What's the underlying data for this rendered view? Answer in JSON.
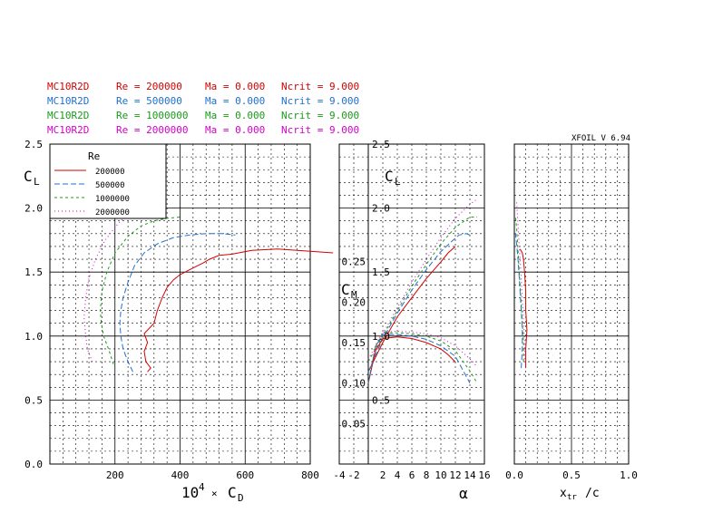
{
  "header": {
    "rows": [
      {
        "airfoil": "MC10R2D",
        "re": "Re = 200000",
        "ma": "Ma = 0.000",
        "ncrit": "Ncrit = 9.000",
        "color": "#d40000"
      },
      {
        "airfoil": "MC10R2D",
        "re": "Re = 500000",
        "ma": "Ma = 0.000",
        "ncrit": "Ncrit = 9.000",
        "color": "#1f6fd0"
      },
      {
        "airfoil": "MC10R2D",
        "re": "Re = 1000000",
        "ma": "Ma = 0.000",
        "ncrit": "Ncrit = 9.000",
        "color": "#1a9a1a"
      },
      {
        "airfoil": "MC10R2D",
        "re": "Re = 2000000",
        "ma": "Ma = 0.000",
        "ncrit": "Ncrit = 9.000",
        "color": "#d400c8"
      }
    ],
    "version": "XFOIL V 6.94"
  },
  "chart_data": [
    {
      "type": "line",
      "panel": "drag-polar",
      "xlabel": "10⁴ × C_D",
      "ylabel": "C_L",
      "xlim": [
        0,
        800
      ],
      "ylim": [
        0,
        2.5
      ],
      "x_ticks": [
        "200",
        "400",
        "600",
        "800"
      ],
      "y_ticks": [
        "0.0",
        "0.5",
        "1.0",
        "1.5",
        "2.0",
        "2.5"
      ],
      "legend": {
        "title": "Re",
        "position": "top-left",
        "entries": [
          "200000",
          "500000",
          "1000000",
          "2000000"
        ]
      },
      "series": [
        {
          "name": "200000",
          "color": "#d40000",
          "dash": "",
          "points": [
            [
              300,
              0.72
            ],
            [
              310,
              0.75
            ],
            [
              295,
              0.8
            ],
            [
              290,
              0.88
            ],
            [
              300,
              0.95
            ],
            [
              290,
              1.02
            ],
            [
              320,
              1.1
            ],
            [
              330,
              1.2
            ],
            [
              345,
              1.3
            ],
            [
              360,
              1.38
            ],
            [
              380,
              1.44
            ],
            [
              400,
              1.48
            ],
            [
              430,
              1.52
            ],
            [
              470,
              1.57
            ],
            [
              490,
              1.6
            ],
            [
              520,
              1.63
            ],
            [
              560,
              1.64
            ],
            [
              620,
              1.67
            ],
            [
              700,
              1.68
            ],
            [
              760,
              1.67
            ],
            [
              870,
              1.65
            ]
          ]
        },
        {
          "name": "500000",
          "color": "#1f6fd0",
          "dash": "6 3",
          "points": [
            [
              255,
              0.72
            ],
            [
              240,
              0.8
            ],
            [
              225,
              0.9
            ],
            [
              218,
              1.0
            ],
            [
              215,
              1.1
            ],
            [
              218,
              1.2
            ],
            [
              225,
              1.3
            ],
            [
              240,
              1.42
            ],
            [
              260,
              1.55
            ],
            [
              290,
              1.65
            ],
            [
              330,
              1.72
            ],
            [
              380,
              1.77
            ],
            [
              430,
              1.79
            ],
            [
              480,
              1.8
            ],
            [
              530,
              1.8
            ],
            [
              570,
              1.79
            ]
          ]
        },
        {
          "name": "1000000",
          "color": "#1a9a1a",
          "dash": "3 3",
          "points": [
            [
              195,
              0.78
            ],
            [
              180,
              0.9
            ],
            [
              165,
              1.0
            ],
            [
              158,
              1.1
            ],
            [
              155,
              1.2
            ],
            [
              160,
              1.35
            ],
            [
              175,
              1.5
            ],
            [
              200,
              1.65
            ],
            [
              240,
              1.78
            ],
            [
              280,
              1.86
            ],
            [
              320,
              1.9
            ],
            [
              360,
              1.92
            ],
            [
              400,
              1.93
            ]
          ]
        },
        {
          "name": "2000000",
          "color": "#d400c8",
          "dash": "1 3",
          "points": [
            [
              130,
              0.8
            ],
            [
              115,
              0.9
            ],
            [
              110,
              1.0
            ],
            [
              105,
              1.15
            ],
            [
              110,
              1.3
            ],
            [
              120,
              1.45
            ],
            [
              140,
              1.6
            ],
            [
              170,
              1.75
            ],
            [
              210,
              1.88
            ],
            [
              250,
              1.97
            ],
            [
              290,
              2.03
            ],
            [
              330,
              2.06
            ],
            [
              360,
              2.07
            ]
          ]
        }
      ]
    },
    {
      "type": "line",
      "panel": "lift-moment",
      "xlabel": "α",
      "ylabel_cl": "C_L",
      "ylabel_cm": "C_M",
      "xlim": [
        -4,
        16
      ],
      "ylim_cl": [
        0,
        2.5
      ],
      "ylim_cm": [
        0,
        0.3
      ],
      "x_ticks": [
        "-4",
        "-2",
        "2",
        "4",
        "6",
        "8",
        "10",
        "12",
        "14",
        "16"
      ],
      "cl_ticks": [
        "0.5",
        "1.0",
        "1.5",
        "2.0",
        "2.5"
      ],
      "cm_ticks": [
        "0.05",
        "0.10",
        "0.15",
        "0.20",
        "0.25"
      ],
      "series_cl": [
        {
          "name": "200000",
          "color": "#d40000",
          "dash": "",
          "points": [
            [
              0,
              0.72
            ],
            [
              2,
              0.95
            ],
            [
              4,
              1.15
            ],
            [
              6,
              1.3
            ],
            [
              8,
              1.45
            ],
            [
              10,
              1.58
            ],
            [
              11,
              1.65
            ],
            [
              12,
              1.7
            ]
          ]
        },
        {
          "name": "500000",
          "color": "#1f6fd0",
          "dash": "6 3",
          "points": [
            [
              0,
              0.72
            ],
            [
              2,
              0.98
            ],
            [
              4,
              1.18
            ],
            [
              6,
              1.36
            ],
            [
              8,
              1.52
            ],
            [
              10,
              1.66
            ],
            [
              11.5,
              1.74
            ],
            [
              12.5,
              1.79
            ],
            [
              13.5,
              1.8
            ],
            [
              14,
              1.79
            ]
          ]
        },
        {
          "name": "1000000",
          "color": "#1a9a1a",
          "dash": "3 3",
          "points": [
            [
              0,
              0.8
            ],
            [
              2,
              1.0
            ],
            [
              4,
              1.2
            ],
            [
              6,
              1.39
            ],
            [
              8,
              1.56
            ],
            [
              10,
              1.72
            ],
            [
              12,
              1.85
            ],
            [
              14,
              1.93
            ],
            [
              15,
              1.93
            ]
          ]
        },
        {
          "name": "2000000",
          "color": "#d400c8",
          "dash": "1 3",
          "points": [
            [
              0,
              0.82
            ],
            [
              2,
              1.02
            ],
            [
              4,
              1.22
            ],
            [
              6,
              1.42
            ],
            [
              8,
              1.6
            ],
            [
              10,
              1.77
            ],
            [
              12,
              1.92
            ],
            [
              14,
              2.03
            ],
            [
              15,
              2.07
            ]
          ]
        }
      ],
      "series_cm": [
        {
          "name": "200000",
          "color": "#d40000",
          "dash": "",
          "points": [
            [
              0,
              0.1
            ],
            [
              1,
              0.14
            ],
            [
              2,
              0.155
            ],
            [
              4,
              0.157
            ],
            [
              6,
              0.155
            ],
            [
              8,
              0.15
            ],
            [
              10,
              0.142
            ],
            [
              11,
              0.135
            ],
            [
              12,
              0.126
            ]
          ]
        },
        {
          "name": "500000",
          "color": "#1f6fd0",
          "dash": "6 3",
          "points": [
            [
              0,
              0.1
            ],
            [
              1,
              0.145
            ],
            [
              2,
              0.16
            ],
            [
              4,
              0.16
            ],
            [
              6,
              0.158
            ],
            [
              8,
              0.154
            ],
            [
              10,
              0.146
            ],
            [
              12,
              0.133
            ],
            [
              14,
              0.1
            ]
          ]
        },
        {
          "name": "1000000",
          "color": "#1a9a1a",
          "dash": "3 3",
          "points": [
            [
              0,
              0.1
            ],
            [
              1,
              0.145
            ],
            [
              2,
              0.162
            ],
            [
              4,
              0.162
            ],
            [
              6,
              0.161
            ],
            [
              8,
              0.158
            ],
            [
              10,
              0.152
            ],
            [
              12,
              0.14
            ],
            [
              14,
              0.115
            ],
            [
              15,
              0.1
            ]
          ]
        },
        {
          "name": "2000000",
          "color": "#d400c8",
          "dash": "1 3",
          "points": [
            [
              0,
              0.1
            ],
            [
              1,
              0.147
            ],
            [
              2,
              0.163
            ],
            [
              4,
              0.164
            ],
            [
              6,
              0.163
            ],
            [
              8,
              0.161
            ],
            [
              10,
              0.156
            ],
            [
              12,
              0.146
            ],
            [
              14,
              0.13
            ],
            [
              15,
              0.12
            ]
          ]
        }
      ]
    },
    {
      "type": "line",
      "panel": "transition",
      "xlabel": "x_tr / c",
      "xlim": [
        0,
        1
      ],
      "ylim": [
        0,
        2.5
      ],
      "x_ticks": [
        "0.0",
        "0.5",
        "1.0"
      ],
      "series": [
        {
          "name": "200000",
          "color": "#d40000",
          "dash": "",
          "points": [
            [
              0.1,
              0.75
            ],
            [
              0.1,
              0.9
            ],
            [
              0.11,
              1.05
            ],
            [
              0.1,
              1.2
            ],
            [
              0.1,
              1.35
            ],
            [
              0.09,
              1.5
            ],
            [
              0.08,
              1.6
            ],
            [
              0.07,
              1.65
            ],
            [
              0.05,
              1.68
            ]
          ]
        },
        {
          "name": "500000",
          "color": "#1f6fd0",
          "dash": "6 3",
          "points": [
            [
              0.06,
              0.75
            ],
            [
              0.07,
              0.9
            ],
            [
              0.07,
              1.05
            ],
            [
              0.06,
              1.2
            ],
            [
              0.05,
              1.35
            ],
            [
              0.04,
              1.5
            ],
            [
              0.03,
              1.62
            ],
            [
              0.02,
              1.72
            ],
            [
              0.01,
              1.8
            ]
          ]
        },
        {
          "name": "1000000",
          "color": "#1a9a1a",
          "dash": "3 3",
          "points": [
            [
              0.08,
              0.8
            ],
            [
              0.08,
              0.95
            ],
            [
              0.07,
              1.1
            ],
            [
              0.06,
              1.25
            ],
            [
              0.05,
              1.4
            ],
            [
              0.04,
              1.55
            ],
            [
              0.03,
              1.7
            ],
            [
              0.02,
              1.85
            ],
            [
              0.01,
              1.93
            ]
          ]
        },
        {
          "name": "2000000",
          "color": "#d400c8",
          "dash": "1 3",
          "points": [
            [
              0.09,
              0.82
            ],
            [
              0.09,
              0.97
            ],
            [
              0.08,
              1.12
            ],
            [
              0.07,
              1.28
            ],
            [
              0.06,
              1.45
            ],
            [
              0.05,
              1.6
            ],
            [
              0.04,
              1.75
            ],
            [
              0.03,
              1.9
            ],
            [
              0.02,
              2.05
            ]
          ]
        }
      ]
    }
  ]
}
